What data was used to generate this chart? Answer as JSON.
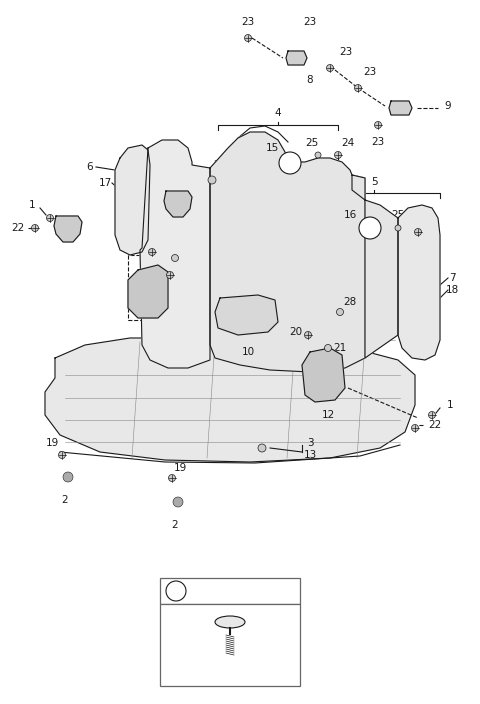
{
  "bg_color": "#ffffff",
  "line_color": "#1a1a1a",
  "fig_width": 4.8,
  "fig_height": 7.04,
  "dpi": 100
}
